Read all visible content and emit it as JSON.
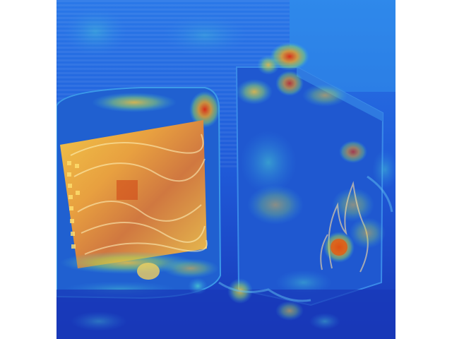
{
  "image": {
    "kind": "attention-heatmap-overlay-photo",
    "scene": "crt-monitor-and-pc-tower",
    "colormap": "jet",
    "colors": {
      "cold": "#1030c8",
      "cool": "#2a8ef0",
      "mid": "#35d0d0",
      "warm": "#f0c040",
      "hot": "#e03a10",
      "pad": "#ffffff"
    }
  }
}
